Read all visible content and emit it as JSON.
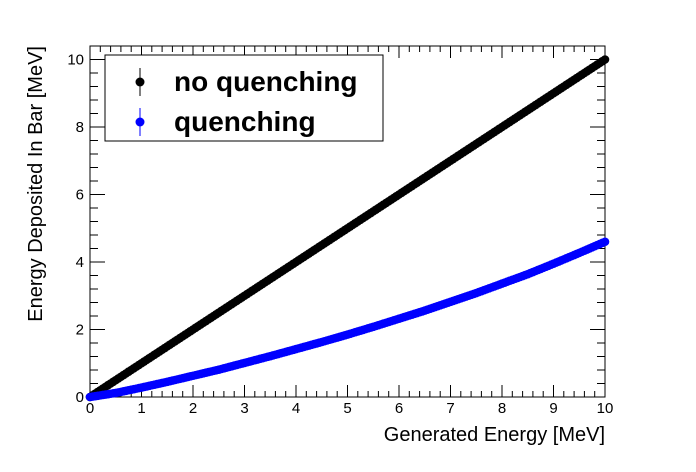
{
  "chart_data": {
    "type": "scatter",
    "title": "",
    "xlabel": "Generated Energy [MeV]",
    "ylabel": "Energy Deposited In Bar [MeV]",
    "xlim": [
      0,
      10
    ],
    "ylim": [
      0,
      10.4
    ],
    "x_ticks": [
      "0",
      "1",
      "2",
      "3",
      "4",
      "5",
      "6",
      "7",
      "8",
      "9",
      "10"
    ],
    "y_ticks": [
      "0",
      "2",
      "4",
      "6",
      "8",
      "10"
    ],
    "legend_position": "top-left",
    "grid": false,
    "series": [
      {
        "name": "no quenching",
        "color": "#000000",
        "x": [
          0,
          0.5,
          1,
          1.5,
          2,
          2.5,
          3,
          3.5,
          4,
          4.5,
          5,
          5.5,
          6,
          6.5,
          7,
          7.5,
          8,
          8.5,
          9,
          9.5,
          10
        ],
        "y": [
          0,
          0.5,
          1,
          1.5,
          2,
          2.5,
          3,
          3.5,
          4,
          4.5,
          5,
          5.5,
          6,
          6.5,
          7,
          7.5,
          8,
          8.5,
          9,
          9.5,
          10
        ]
      },
      {
        "name": "quenching",
        "color": "#0000ff",
        "x": [
          0,
          0.5,
          1,
          1.5,
          2,
          2.5,
          3,
          3.5,
          4,
          4.5,
          5,
          5.5,
          6,
          6.5,
          7,
          7.5,
          8,
          8.5,
          9,
          9.5,
          10
        ],
        "y": [
          0,
          0.12,
          0.28,
          0.45,
          0.63,
          0.81,
          1.01,
          1.21,
          1.42,
          1.63,
          1.85,
          2.08,
          2.32,
          2.56,
          2.82,
          3.08,
          3.36,
          3.64,
          3.95,
          4.27,
          4.6
        ]
      }
    ]
  }
}
